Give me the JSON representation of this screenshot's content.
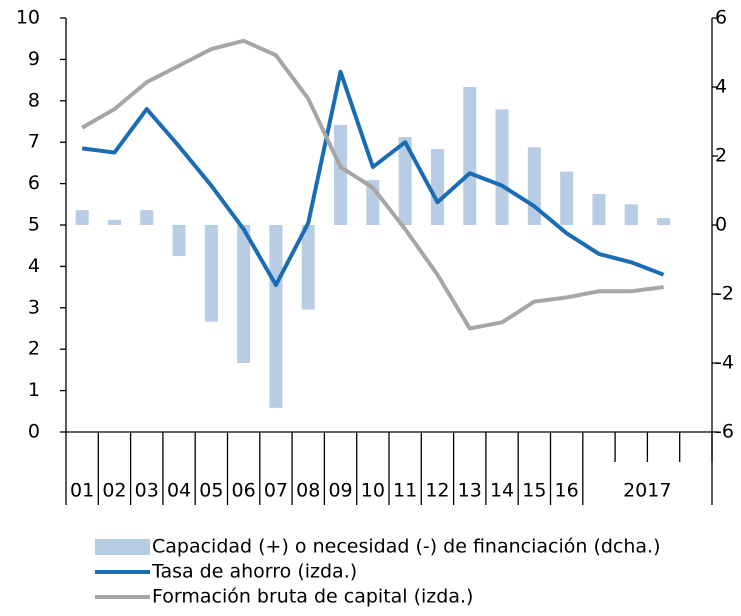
{
  "chart_data": {
    "type": "combo",
    "categories": [
      "01",
      "02",
      "03",
      "04",
      "05",
      "06",
      "07",
      "08",
      "09",
      "10",
      "11",
      "12",
      "13",
      "14",
      "15",
      "16",
      null,
      "2017",
      null,
      null
    ],
    "series": [
      {
        "name": "Capacidad (+) o necesidad (-) de financiación (dcha.)",
        "type": "bar",
        "axis": "y2",
        "color": "#b8cce4",
        "values": [
          0.43,
          0.15,
          0.43,
          -0.9,
          -2.8,
          -4.0,
          -5.3,
          -2.45,
          2.9,
          1.3,
          2.55,
          2.2,
          4.0,
          3.35,
          2.25,
          1.55,
          0.9,
          0.6,
          0.2,
          null
        ]
      },
      {
        "name": "Tasa de ahorro (izda.)",
        "type": "line",
        "axis": "y",
        "color": "#1a6db5",
        "values": [
          6.85,
          6.75,
          7.8,
          6.9,
          5.95,
          4.9,
          3.55,
          5.05,
          8.7,
          6.4,
          7.0,
          5.55,
          6.25,
          5.95,
          5.45,
          4.8,
          4.3,
          4.1,
          3.8,
          null
        ]
      },
      {
        "name": "Formación bruta de capital (izda.)",
        "type": "line",
        "axis": "y",
        "color": "#a6a6a6",
        "values": [
          7.35,
          7.8,
          8.45,
          8.85,
          9.25,
          9.45,
          9.1,
          8.05,
          6.4,
          5.9,
          4.9,
          3.8,
          2.5,
          2.65,
          3.15,
          3.25,
          3.4,
          3.4,
          3.5,
          null
        ]
      }
    ],
    "ylim": [
      0,
      10
    ],
    "yticks": [
      0,
      1,
      2,
      3,
      4,
      5,
      6,
      7,
      8,
      9,
      10
    ],
    "y2lim": [
      -6,
      6
    ],
    "y2ticks": [
      -6,
      -4,
      -2,
      0,
      2,
      4,
      6
    ]
  }
}
